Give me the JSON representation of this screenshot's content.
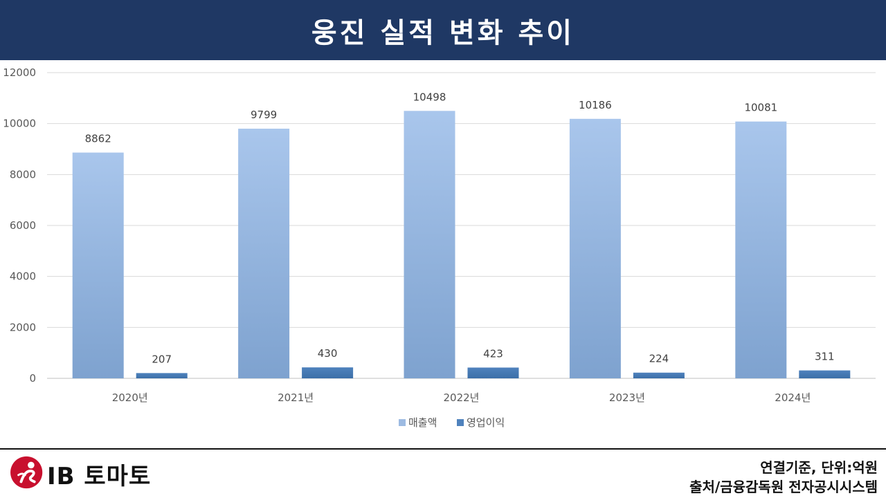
{
  "header": {
    "title": "웅진 실적 변화 추이"
  },
  "chart_data": {
    "type": "bar",
    "categories": [
      "2020년",
      "2021년",
      "2022년",
      "2023년",
      "2024년"
    ],
    "series": [
      {
        "name": "매출액",
        "values": [
          8862,
          9799,
          10498,
          10186,
          10081
        ],
        "color": "#9dbbe2"
      },
      {
        "name": "영업이익",
        "values": [
          207,
          430,
          423,
          224,
          311
        ],
        "color": "#4f82bd"
      }
    ],
    "ylim": [
      0,
      12000
    ],
    "yticks": [
      0,
      2000,
      4000,
      6000,
      8000,
      10000,
      12000
    ],
    "grid": true,
    "legend_position": "bottom"
  },
  "footer": {
    "logo_text": "IB 토마토",
    "note_basis": "연결기준, 단위:억원",
    "note_source": "출처/금융감독원 전자공시시스템"
  },
  "colors": {
    "header_bg": "#1f3864",
    "bar_sales": "#9dbbe2",
    "bar_profit": "#4f82bd",
    "logo_red": "#c8102e"
  }
}
